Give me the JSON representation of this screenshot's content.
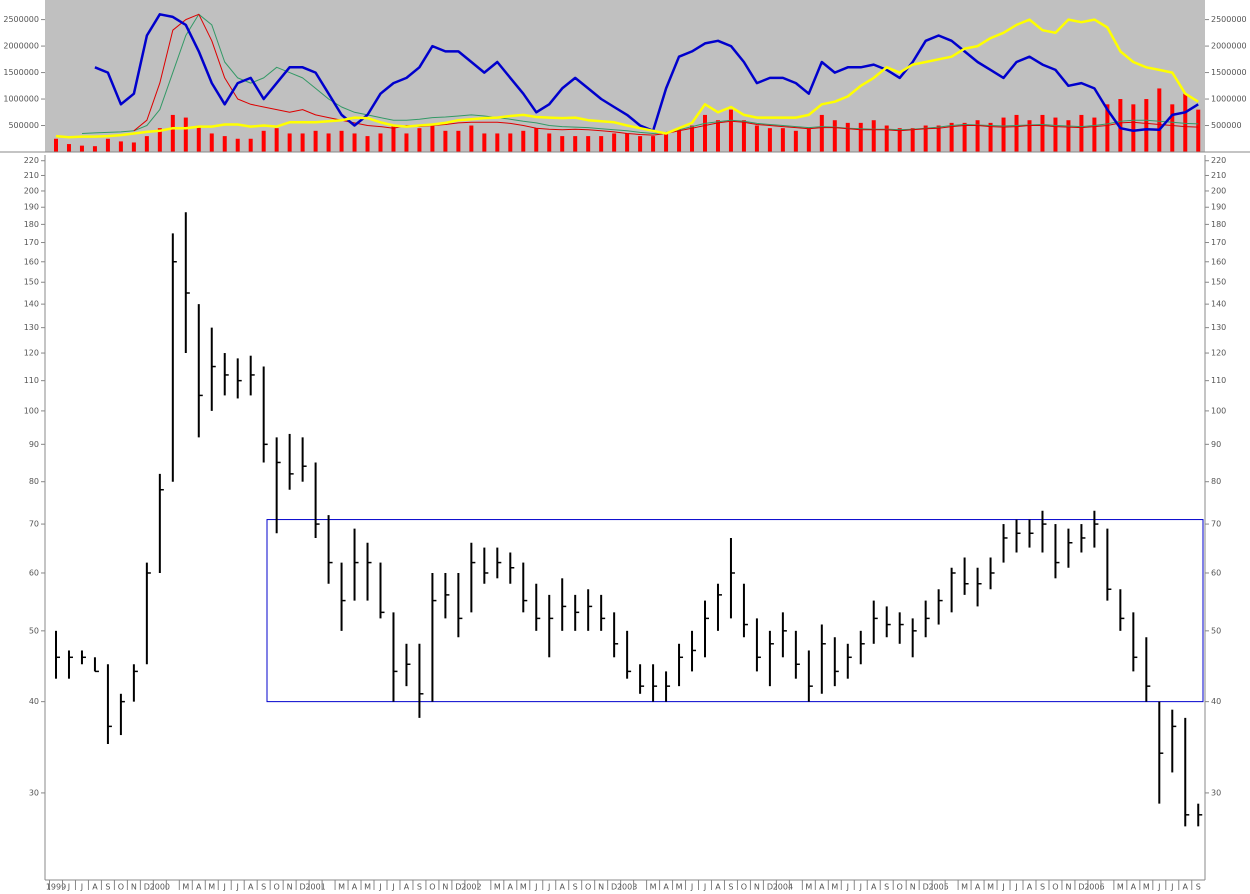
{
  "chart_data": [
    {
      "type": "combo",
      "ylim": [
        0,
        2870000
      ],
      "yticks": [
        500000,
        1000000,
        1500000,
        2000000,
        2500000
      ],
      "background": "#c0c0c0",
      "series": [
        {
          "kind": "bar",
          "color": "#ff0000",
          "values": [
            250000,
            150000,
            120000,
            110000,
            250000,
            200000,
            180000,
            300000,
            450000,
            700000,
            650000,
            500000,
            350000,
            300000,
            250000,
            250000,
            400000,
            450000,
            350000,
            350000,
            400000,
            350000,
            400000,
            350000,
            300000,
            350000,
            500000,
            350000,
            450000,
            500000,
            400000,
            400000,
            500000,
            350000,
            350000,
            350000,
            400000,
            450000,
            350000,
            300000,
            300000,
            300000,
            300000,
            350000,
            350000,
            300000,
            300000,
            350000,
            450000,
            500000,
            700000,
            600000,
            800000,
            600000,
            500000,
            450000,
            450000,
            400000,
            450000,
            700000,
            600000,
            550000,
            550000,
            600000,
            500000,
            450000,
            450000,
            500000,
            500000,
            550000,
            550000,
            600000,
            550000,
            650000,
            700000,
            600000,
            700000,
            650000,
            600000,
            700000,
            650000,
            900000,
            1000000,
            900000,
            1000000,
            1200000,
            900000,
            1100000,
            800000
          ]
        },
        {
          "kind": "line",
          "color": "#339966",
          "width": 1,
          "values": [
            null,
            null,
            350000,
            360000,
            370000,
            380000,
            400000,
            500000,
            800000,
            1500000,
            2200000,
            2600000,
            2400000,
            1700000,
            1400000,
            1300000,
            1400000,
            1600000,
            1500000,
            1400000,
            1200000,
            1000000,
            850000,
            750000,
            700000,
            650000,
            600000,
            600000,
            620000,
            650000,
            660000,
            680000,
            700000,
            680000,
            650000,
            620000,
            580000,
            550000,
            500000,
            480000,
            470000,
            460000,
            440000,
            420000,
            400000,
            370000,
            350000,
            370000,
            420000,
            480000,
            540000,
            570000,
            600000,
            580000,
            540000,
            520000,
            500000,
            480000,
            460000,
            480000,
            470000,
            450000,
            440000,
            430000,
            430000,
            420000,
            430000,
            450000,
            470000,
            500000,
            520000,
            510000,
            500000,
            490000,
            500000,
            510000,
            520000,
            500000,
            490000,
            480000,
            500000,
            530000,
            580000,
            600000,
            600000,
            580000,
            560000,
            540000,
            530000
          ]
        },
        {
          "kind": "line",
          "color": "#dd0000",
          "width": 1,
          "values": [
            null,
            null,
            null,
            null,
            null,
            null,
            400000,
            600000,
            1300000,
            2300000,
            2500000,
            2600000,
            2100000,
            1400000,
            1000000,
            900000,
            850000,
            800000,
            750000,
            800000,
            700000,
            650000,
            600000,
            550000,
            500000,
            480000,
            450000,
            500000,
            480000,
            500000,
            520000,
            550000,
            560000,
            560000,
            560000,
            540000,
            500000,
            450000,
            430000,
            420000,
            430000,
            420000,
            400000,
            380000,
            350000,
            330000,
            320000,
            350000,
            400000,
            450000,
            500000,
            550000,
            580000,
            560000,
            520000,
            500000,
            480000,
            460000,
            440000,
            460000,
            460000,
            440000,
            420000,
            420000,
            420000,
            400000,
            420000,
            440000,
            450000,
            480000,
            500000,
            500000,
            480000,
            470000,
            480000,
            500000,
            500000,
            480000,
            470000,
            460000,
            480000,
            500000,
            550000,
            560000,
            540000,
            520000,
            500000,
            480000,
            470000
          ]
        },
        {
          "kind": "line",
          "color": "#0000cc",
          "width": 2.5,
          "values": [
            null,
            null,
            null,
            1600000,
            1500000,
            900000,
            1100000,
            2200000,
            2600000,
            2550000,
            2400000,
            1900000,
            1300000,
            900000,
            1300000,
            1400000,
            1000000,
            1300000,
            1600000,
            1600000,
            1500000,
            1100000,
            700000,
            500000,
            700000,
            1100000,
            1300000,
            1400000,
            1600000,
            2000000,
            1900000,
            1900000,
            1700000,
            1500000,
            1700000,
            1400000,
            1100000,
            750000,
            900000,
            1200000,
            1400000,
            1200000,
            1000000,
            850000,
            700000,
            500000,
            400000,
            1200000,
            1800000,
            1900000,
            2050000,
            2100000,
            2000000,
            1700000,
            1300000,
            1400000,
            1400000,
            1300000,
            1100000,
            1700000,
            1500000,
            1600000,
            1600000,
            1650000,
            1550000,
            1400000,
            1700000,
            2100000,
            2200000,
            2100000,
            1900000,
            1700000,
            1550000,
            1400000,
            1700000,
            1800000,
            1650000,
            1550000,
            1250000,
            1300000,
            1200000,
            800000,
            450000,
            400000,
            430000,
            420000,
            700000,
            750000,
            900000
          ]
        },
        {
          "kind": "line",
          "color": "#ffff00",
          "width": 2.5,
          "values": [
            300000,
            280000,
            290000,
            290000,
            300000,
            320000,
            350000,
            380000,
            400000,
            450000,
            450000,
            480000,
            480000,
            520000,
            520000,
            480000,
            500000,
            480000,
            560000,
            560000,
            560000,
            580000,
            600000,
            650000,
            640000,
            560000,
            500000,
            480000,
            500000,
            520000,
            550000,
            600000,
            620000,
            640000,
            650000,
            680000,
            700000,
            660000,
            650000,
            640000,
            650000,
            600000,
            580000,
            560000,
            500000,
            450000,
            400000,
            350000,
            450000,
            550000,
            900000,
            750000,
            850000,
            700000,
            650000,
            650000,
            650000,
            650000,
            700000,
            900000,
            950000,
            1050000,
            1250000,
            1400000,
            1600000,
            1500000,
            1650000,
            1700000,
            1750000,
            1800000,
            1950000,
            2000000,
            2150000,
            2250000,
            2400000,
            2500000,
            2300000,
            2250000,
            2500000,
            2450000,
            2500000,
            2350000,
            1900000,
            1700000,
            1600000,
            1550000,
            1500000,
            1100000,
            950000
          ]
        }
      ]
    },
    {
      "type": "ohlc",
      "log": true,
      "ylim": [
        22.8,
        224
      ],
      "yticks": [
        30,
        40,
        50,
        60,
        70,
        80,
        90,
        100,
        110,
        120,
        130,
        140,
        150,
        160,
        170,
        180,
        190,
        200,
        210,
        220
      ],
      "color": "#000000",
      "box": {
        "low": 40,
        "high": 71,
        "color": "#0000cc"
      },
      "categories": [
        "1999",
        "J",
        "J",
        "A",
        "S",
        "O",
        "N",
        "D",
        "2000",
        null,
        "M",
        "A",
        "M",
        "J",
        "J",
        "A",
        "S",
        "O",
        "N",
        "D",
        "2001",
        null,
        "M",
        "A",
        "M",
        "J",
        "J",
        "A",
        "S",
        "O",
        "N",
        "D",
        "2002",
        null,
        "M",
        "A",
        "M",
        "J",
        "J",
        "A",
        "S",
        "O",
        "N",
        "D",
        "2003",
        null,
        "M",
        "A",
        "M",
        "J",
        "J",
        "A",
        "S",
        "O",
        "N",
        "D",
        "2004",
        null,
        "M",
        "A",
        "M",
        "J",
        "J",
        "A",
        "S",
        "O",
        "N",
        "D",
        "2005",
        null,
        "M",
        "A",
        "M",
        "J",
        "J",
        "A",
        "S",
        "O",
        "N",
        "D",
        "2006",
        null,
        "M",
        "A",
        "M",
        "J",
        "J",
        "A",
        "S"
      ],
      "high": [
        50,
        47,
        47,
        46,
        45,
        41,
        45,
        62,
        82,
        175,
        187,
        140,
        130,
        120,
        118,
        119,
        115,
        92,
        93,
        92,
        85,
        72,
        62,
        69,
        66,
        62,
        53,
        48,
        48,
        60,
        60,
        60,
        66,
        65,
        65,
        64,
        62,
        58,
        56,
        59,
        56,
        57,
        56,
        53,
        50,
        45,
        45,
        44,
        48,
        50,
        55,
        58,
        67,
        58,
        52,
        50,
        53,
        50,
        47,
        51,
        49,
        48,
        50,
        55,
        54,
        53,
        52,
        55,
        57,
        61,
        63,
        61,
        63,
        70,
        71,
        71,
        73,
        70,
        69,
        70,
        73,
        69,
        57,
        53,
        49,
        40,
        39,
        38,
        29
      ],
      "low": [
        43,
        43,
        45,
        44,
        35,
        36,
        40,
        45,
        60,
        80,
        120,
        92,
        100,
        105,
        104,
        105,
        85,
        68,
        78,
        80,
        67,
        58,
        50,
        55,
        55,
        52,
        40,
        42,
        38,
        40,
        52,
        49,
        53,
        58,
        59,
        58,
        53,
        50,
        46,
        50,
        50,
        50,
        50,
        46,
        43,
        41,
        40,
        40,
        42,
        44,
        46,
        50,
        52,
        49,
        44,
        42,
        46,
        43,
        40,
        41,
        42,
        43,
        45,
        48,
        49,
        48,
        46,
        49,
        51,
        53,
        56,
        54,
        57,
        62,
        64,
        65,
        64,
        59,
        61,
        64,
        65,
        55,
        50,
        44,
        40,
        29,
        32,
        27,
        27
      ],
      "close": [
        46,
        46,
        46,
        44,
        37,
        40,
        44,
        60,
        78,
        160,
        145,
        105,
        115,
        112,
        110,
        112,
        90,
        85,
        82,
        84,
        70,
        62,
        55,
        62,
        62,
        53,
        44,
        45,
        41,
        55,
        56,
        52,
        62,
        60,
        62,
        61,
        55,
        52,
        52,
        54,
        53,
        54,
        52,
        48,
        44,
        42,
        42,
        42,
        46,
        47,
        52,
        56,
        60,
        51,
        46,
        48,
        50,
        45,
        42,
        48,
        44,
        46,
        48,
        52,
        51,
        51,
        50,
        52,
        55,
        60,
        58,
        58,
        60,
        67,
        68,
        68,
        70,
        62,
        66,
        67,
        70,
        57,
        52,
        46,
        42,
        34,
        37,
        28,
        28
      ]
    }
  ]
}
